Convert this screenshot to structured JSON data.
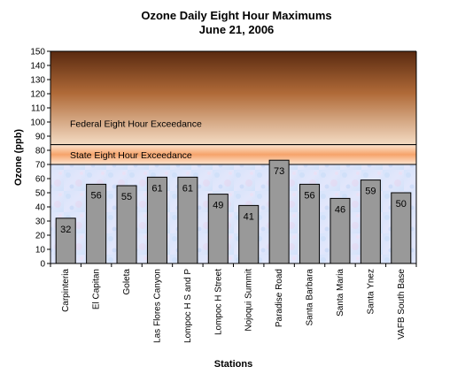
{
  "chart_data": {
    "type": "bar",
    "title": "Ozone Daily Eight Hour Maximums",
    "subtitle": "June 21, 2006",
    "xlabel": "Stations",
    "ylabel": "Ozone (ppb)",
    "ylim": [
      0,
      150
    ],
    "ytick_step": 10,
    "categories": [
      "Carpinteria",
      "El Capitan",
      "Goleta",
      "Las Flores Canyon",
      "Lompoc H S and P",
      "Lompoc H Street",
      "Nojoqui Summit",
      "Paradise Road",
      "Santa Barbara",
      "Santa Maria",
      "Santa Ynez",
      "VAFB South Base"
    ],
    "values": [
      32,
      56,
      55,
      61,
      61,
      49,
      41,
      73,
      56,
      46,
      59,
      50
    ],
    "bar_color": "#999999",
    "zones": [
      {
        "label": "Federal Eight Hour Exceedance",
        "from": 84,
        "to": 150
      },
      {
        "label": "State Eight Hour Exceedance",
        "from": 70,
        "to": 84
      }
    ],
    "grid": false,
    "legend": "none"
  }
}
